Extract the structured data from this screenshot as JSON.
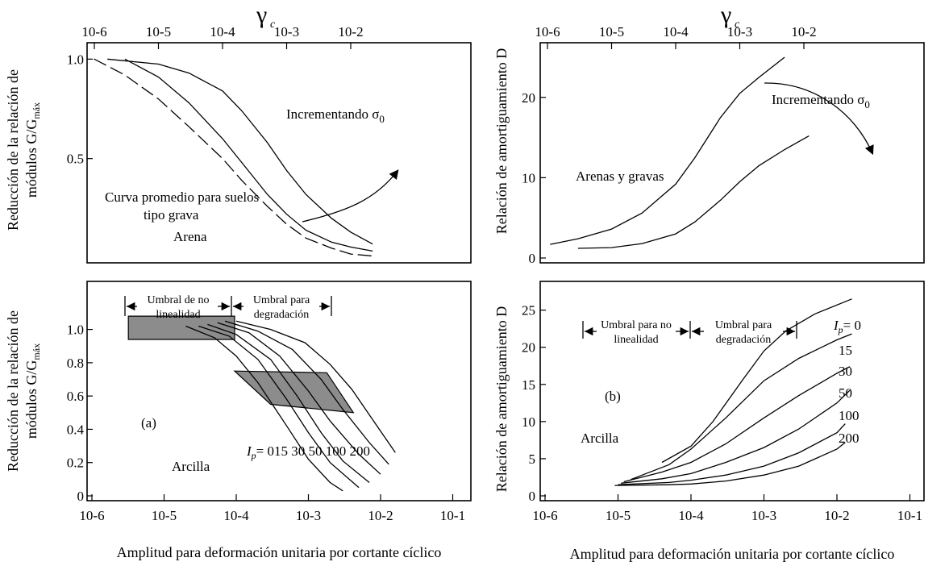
{
  "figure": {
    "x_axis_label": "Amplitud para deformación unitaria por cortante cíclico",
    "gamma_symbol": "γ",
    "gamma_subscript": "c",
    "x_tick_labels": [
      "10-6",
      "10-5",
      "10-4",
      "10-3",
      "10-2",
      "10-1"
    ],
    "top_tick_labels": [
      "10-6",
      "10-5",
      "10-4",
      "10-3",
      "10-2"
    ]
  },
  "chart_data": [
    {
      "id": "top-left",
      "type": "line",
      "xscale": "log",
      "xlim": [
        1e-06,
        0.025
      ],
      "ylim": [
        0,
        1.05
      ],
      "ylabel_line1": "Reducción de la relación de",
      "ylabel_line2": "módulos G/G",
      "ylabel_sub": "máx",
      "yticks": [
        {
          "value": 1.0,
          "label": "1.0"
        },
        {
          "value": 0.5,
          "label": "0.5"
        }
      ],
      "annotations": {
        "increasing": "Incrementando σ",
        "increasing_sub": "0",
        "avg_line1": "Curva promedio para suelos",
        "avg_line2": "tipo grava",
        "sand": "Arena"
      },
      "series": [
        {
          "style": "thin",
          "points": [
            [
              1.6e-06,
              1.0
            ],
            [
              1e-05,
              0.975
            ],
            [
              3e-05,
              0.93
            ],
            [
              0.0001,
              0.84
            ],
            [
              0.0002,
              0.74
            ],
            [
              0.0005,
              0.58
            ],
            [
              0.001,
              0.44
            ],
            [
              0.002,
              0.32
            ],
            [
              0.005,
              0.2
            ],
            [
              0.01,
              0.13
            ],
            [
              0.022,
              0.07
            ]
          ]
        },
        {
          "style": "thin",
          "points": [
            [
              3e-06,
              1.0
            ],
            [
              1e-05,
              0.91
            ],
            [
              3e-05,
              0.78
            ],
            [
              0.0001,
              0.6
            ],
            [
              0.0002,
              0.48
            ],
            [
              0.0005,
              0.32
            ],
            [
              0.001,
              0.22
            ],
            [
              0.002,
              0.14
            ],
            [
              0.005,
              0.08
            ],
            [
              0.01,
              0.055
            ],
            [
              0.022,
              0.035
            ]
          ]
        },
        {
          "style": "dashed-bold",
          "points": [
            [
              1e-06,
              1.0
            ],
            [
              3e-06,
              0.92
            ],
            [
              1e-05,
              0.8
            ],
            [
              3e-05,
              0.66
            ],
            [
              0.0001,
              0.5
            ],
            [
              0.0002,
              0.39
            ],
            [
              0.0005,
              0.26
            ],
            [
              0.001,
              0.17
            ],
            [
              0.002,
              0.1
            ],
            [
              0.005,
              0.05
            ],
            [
              0.01,
              0.02
            ],
            [
              0.022,
              0.01
            ]
          ]
        }
      ]
    },
    {
      "id": "top-right",
      "type": "line",
      "xscale": "log",
      "xlim": [
        1e-06,
        0.025
      ],
      "ylim": [
        0,
        26
      ],
      "ylabel_line1": "Relación de amortiguamiento D",
      "yticks": [
        {
          "value": 20,
          "label": "20"
        },
        {
          "value": 10,
          "label": "10"
        },
        {
          "value": 0,
          "label": "0"
        }
      ],
      "annotations": {
        "increasing": "Incrementando σ",
        "increasing_sub": "0",
        "material": "Arenas y gravas"
      },
      "series": [
        {
          "style": "thin",
          "points": [
            [
              1.1e-06,
              1.7
            ],
            [
              3e-06,
              2.4
            ],
            [
              1e-05,
              3.6
            ],
            [
              3e-05,
              5.6
            ],
            [
              0.0001,
              9.2
            ],
            [
              0.0002,
              12.5
            ],
            [
              0.0005,
              17.5
            ],
            [
              0.001,
              20.5
            ],
            [
              0.002,
              22.5
            ],
            [
              0.005,
              25.0
            ]
          ]
        },
        {
          "style": "thin",
          "points": [
            [
              3e-06,
              1.2
            ],
            [
              1e-05,
              1.3
            ],
            [
              3e-05,
              1.8
            ],
            [
              0.0001,
              3.0
            ],
            [
              0.0002,
              4.5
            ],
            [
              0.0005,
              7.2
            ],
            [
              0.001,
              9.5
            ],
            [
              0.002,
              11.5
            ],
            [
              0.005,
              13.5
            ],
            [
              0.012,
              15.2
            ]
          ]
        }
      ]
    },
    {
      "id": "bottom-left",
      "type": "line",
      "xscale": "log",
      "xlim": [
        1e-06,
        0.3
      ],
      "ylim": [
        0,
        1.25
      ],
      "ylabel_line1": "Reducción de la relación de",
      "ylabel_line2": "módulos G/G",
      "ylabel_sub": "máx",
      "yticks": [
        {
          "value": 1.0,
          "label": "1.0"
        },
        {
          "value": 0.8,
          "label": "0.8"
        },
        {
          "value": 0.6,
          "label": "0.6"
        },
        {
          "value": 0.4,
          "label": "0.4"
        },
        {
          "value": 0.2,
          "label": "0.2"
        },
        {
          "value": 0,
          "label": "0"
        }
      ],
      "annotations": {
        "panel": "(a)",
        "material": "Arcilla",
        "ip_prefix": "I",
        "ip_sub": "p",
        "ip_values": "= 015 30 50 100 200",
        "threshold1_line1": "Umbral de no",
        "threshold1_line2": "linealidad",
        "threshold2_line1": "Umbral para",
        "threshold2_line2": "degradación"
      },
      "series": [
        {
          "name": "0",
          "points": [
            [
              2e-05,
              1.02
            ],
            [
              5e-05,
              0.95
            ],
            [
              0.0001,
              0.84
            ],
            [
              0.0002,
              0.68
            ],
            [
              0.0005,
              0.42
            ],
            [
              0.001,
              0.22
            ],
            [
              0.002,
              0.08
            ],
            [
              0.003,
              0.03
            ]
          ]
        },
        {
          "name": "15",
          "points": [
            [
              3e-05,
              1.02
            ],
            [
              8e-05,
              0.96
            ],
            [
              0.0002,
              0.82
            ],
            [
              0.0005,
              0.58
            ],
            [
              0.001,
              0.38
            ],
            [
              0.002,
              0.2
            ],
            [
              0.005,
              0.05
            ]
          ]
        },
        {
          "name": "30",
          "points": [
            [
              4e-05,
              1.03
            ],
            [
              0.0001,
              0.97
            ],
            [
              0.0003,
              0.82
            ],
            [
              0.0007,
              0.6
            ],
            [
              0.0015,
              0.38
            ],
            [
              0.003,
              0.21
            ],
            [
              0.007,
              0.08
            ]
          ]
        },
        {
          "name": "50",
          "points": [
            [
              5.5e-05,
              1.04
            ],
            [
              0.00015,
              0.98
            ],
            [
              0.0004,
              0.84
            ],
            [
              0.001,
              0.63
            ],
            [
              0.002,
              0.45
            ],
            [
              0.005,
              0.25
            ],
            [
              0.01,
              0.13
            ]
          ]
        },
        {
          "name": "100",
          "points": [
            [
              7e-05,
              1.05
            ],
            [
              0.0002,
              0.99
            ],
            [
              0.0006,
              0.88
            ],
            [
              0.0015,
              0.7
            ],
            [
              0.003,
              0.52
            ],
            [
              0.007,
              0.32
            ],
            [
              0.013,
              0.19
            ]
          ]
        },
        {
          "name": "200",
          "points": [
            [
              0.0001,
              1.05
            ],
            [
              0.0003,
              1.0
            ],
            [
              0.0009,
              0.92
            ],
            [
              0.002,
              0.79
            ],
            [
              0.004,
              0.64
            ],
            [
              0.008,
              0.45
            ],
            [
              0.016,
              0.26
            ]
          ]
        }
      ],
      "shaded_regions": [
        {
          "points": [
            [
              3.2e-06,
              0.94
            ],
            [
              9.5e-05,
              0.94
            ],
            [
              9.5e-05,
              1.08
            ],
            [
              3.2e-06,
              1.08
            ]
          ]
        },
        {
          "points": [
            [
              9.5e-05,
              0.75
            ],
            [
              0.0018,
              0.74
            ],
            [
              0.0042,
              0.5
            ],
            [
              0.0003,
              0.55
            ]
          ]
        }
      ]
    },
    {
      "id": "bottom-right",
      "type": "line",
      "xscale": "log",
      "xlim": [
        1e-06,
        0.3
      ],
      "ylim": [
        0,
        28
      ],
      "ylabel_line1": "Relación de amortiguamiento D",
      "yticks": [
        {
          "value": 25,
          "label": "25"
        },
        {
          "value": 20,
          "label": "20"
        },
        {
          "value": 15,
          "label": "15"
        },
        {
          "value": 10,
          "label": "10"
        },
        {
          "value": 5,
          "label": "5"
        },
        {
          "value": 0,
          "label": "0"
        }
      ],
      "annotations": {
        "panel": "(b)",
        "material": "Arcilla",
        "threshold1_line1": "Umbral para no",
        "threshold1_line2": "linealidad",
        "threshold2_line1": "Umbral para",
        "threshold2_line2": "degradación",
        "ip_prefix": "I",
        "ip_sub": "p",
        "ip_first": "= 0",
        "ip_labels": [
          "15",
          "30",
          "50",
          "100",
          "200"
        ]
      },
      "series": [
        {
          "name": "0",
          "points": [
            [
              4e-05,
              4.5
            ],
            [
              0.0001,
              6.7
            ],
            [
              0.0002,
              10.0
            ],
            [
              0.0005,
              15.5
            ],
            [
              0.001,
              19.5
            ],
            [
              0.002,
              22.2
            ],
            [
              0.005,
              24.5
            ],
            [
              0.016,
              26.5
            ]
          ]
        },
        {
          "name": "15",
          "points": [
            [
              1.5e-05,
              2.2
            ],
            [
              5e-05,
              4.2
            ],
            [
              0.0001,
              6.3
            ],
            [
              0.0003,
              10.5
            ],
            [
              0.001,
              15.5
            ],
            [
              0.003,
              18.5
            ],
            [
              0.01,
              21.0
            ],
            [
              0.016,
              21.8
            ]
          ]
        },
        {
          "name": "30",
          "points": [
            [
              1.2e-05,
              1.9
            ],
            [
              4e-05,
              3.2
            ],
            [
              0.0001,
              4.5
            ],
            [
              0.0003,
              7.0
            ],
            [
              0.001,
              10.5
            ],
            [
              0.003,
              13.5
            ],
            [
              0.01,
              16.5
            ],
            [
              0.015,
              17.4
            ]
          ]
        },
        {
          "name": "50",
          "points": [
            [
              1.1e-05,
              1.7
            ],
            [
              4e-05,
              2.3
            ],
            [
              0.0001,
              3.0
            ],
            [
              0.0003,
              4.5
            ],
            [
              0.001,
              6.5
            ],
            [
              0.003,
              9.0
            ],
            [
              0.01,
              12.5
            ],
            [
              0.015,
              14.2
            ]
          ]
        },
        {
          "name": "100",
          "points": [
            [
              1e-05,
              1.5
            ],
            [
              5e-05,
              1.8
            ],
            [
              0.0001,
              2.1
            ],
            [
              0.0003,
              2.8
            ],
            [
              0.001,
              4.0
            ],
            [
              0.003,
              5.8
            ],
            [
              0.01,
              8.5
            ],
            [
              0.013,
              9.7
            ]
          ]
        },
        {
          "name": "200",
          "points": [
            [
              9e-06,
              1.4
            ],
            [
              5e-05,
              1.5
            ],
            [
              0.0001,
              1.6
            ],
            [
              0.0003,
              2.0
            ],
            [
              0.001,
              2.8
            ],
            [
              0.003,
              4.0
            ],
            [
              0.01,
              6.3
            ],
            [
              0.013,
              7.2
            ]
          ]
        }
      ]
    }
  ]
}
